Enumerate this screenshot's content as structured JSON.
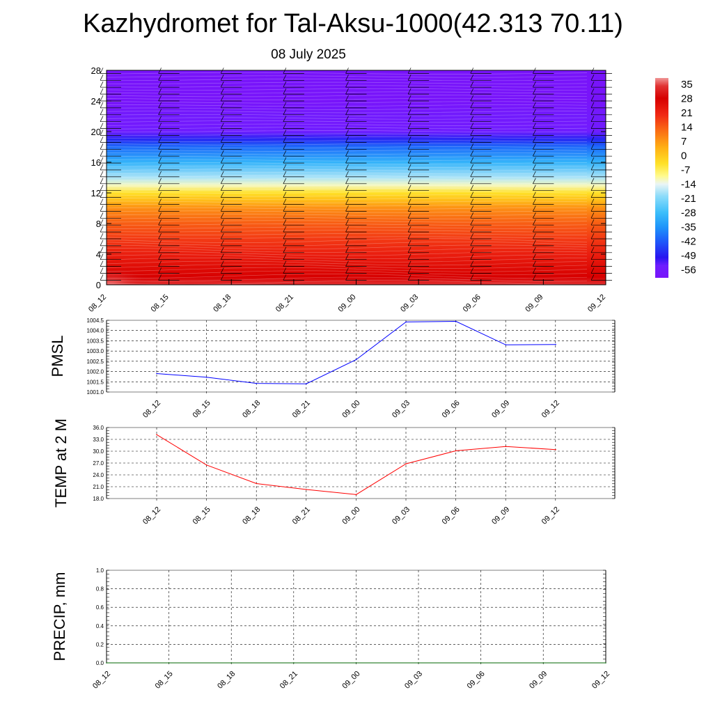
{
  "title": "Kazhydromet for Tal-Aksu-1000(42.313 70.11)",
  "subtitle": "08 July 2025",
  "colors": {
    "pmsl_line": "#0000ff",
    "temp_line": "#ff0000",
    "precip_line": "#006400"
  },
  "chart_data": [
    {
      "type": "heatmap",
      "name": "cross-section",
      "x_ticks": [
        "08_12",
        "08_15",
        "08_18",
        "08_21",
        "09_00",
        "09_03",
        "09_06",
        "09_09",
        "09_12"
      ],
      "y_ticks": [
        "0",
        "4",
        "8",
        "12",
        "16",
        "20",
        "24",
        "28"
      ],
      "ylim": [
        0,
        28
      ],
      "colorbar": {
        "ticks": [
          "35",
          "28",
          "21",
          "14",
          "7",
          "0",
          "-7",
          "-14",
          "-21",
          "-28",
          "-35",
          "-42",
          "-49",
          "-56"
        ],
        "range": [
          -60,
          38
        ]
      },
      "profile_levels": [
        0,
        1,
        2,
        4,
        6,
        8,
        10,
        11,
        12,
        13,
        14,
        16,
        18,
        19,
        20,
        21,
        22,
        23,
        24,
        26,
        28
      ],
      "profile_values": [
        34,
        28,
        26,
        22,
        18,
        14,
        8,
        2,
        -4,
        -12,
        -18,
        -30,
        -40,
        -48,
        -54,
        -57,
        -56,
        -58,
        -60,
        -60,
        -60
      ],
      "wind_barbs": "present"
    },
    {
      "type": "line",
      "name": "PMSL",
      "ylabel": "PMSL",
      "categories": [
        "08_12",
        "08_15",
        "08_18",
        "08_21",
        "09_00",
        "09_03",
        "09_06",
        "09_09",
        "09_12"
      ],
      "ylim": [
        1001.0,
        1004.5
      ],
      "y_ticks": [
        "1004.5",
        "1004.0",
        "1003.5",
        "1003.0",
        "1002.5",
        "1002.0",
        "1001.5",
        "1001.0"
      ],
      "y_tick_values": [
        1004.5,
        1004.0,
        1003.5,
        1003.0,
        1002.5,
        1002.0,
        1001.5,
        1001.0
      ],
      "series": [
        {
          "values": [
            1001.9,
            1001.72,
            1001.42,
            1001.4,
            1002.58,
            1004.42,
            1004.45,
            1003.3,
            1003.32
          ]
        }
      ]
    },
    {
      "type": "line",
      "name": "TEMP",
      "ylabel": "TEMP at 2 M",
      "categories": [
        "08_12",
        "08_15",
        "08_18",
        "08_21",
        "09_00",
        "09_03",
        "09_06",
        "09_09",
        "09_12"
      ],
      "ylim": [
        18.0,
        36.0
      ],
      "y_ticks": [
        "36.0",
        "33.0",
        "30.0",
        "27.0",
        "24.0",
        "21.0",
        "18.0"
      ],
      "y_tick_values": [
        36,
        33,
        30,
        27,
        24,
        21,
        18
      ],
      "series": [
        {
          "values": [
            34.2,
            26.5,
            21.8,
            20.3,
            19.0,
            26.8,
            30.1,
            31.2,
            30.4
          ]
        }
      ]
    },
    {
      "type": "line",
      "name": "PRECIP",
      "ylabel": "PRECIP, mm",
      "categories": [
        "08_12",
        "08_15",
        "08_18",
        "08_21",
        "09_00",
        "09_03",
        "09_06",
        "09_09",
        "09_12"
      ],
      "ylim": [
        0,
        1.0
      ],
      "y_ticks": [
        "1.0",
        "0.8",
        "0.6",
        "0.4",
        "0.2",
        "0.0"
      ],
      "y_tick_values": [
        1.0,
        0.8,
        0.6,
        0.4,
        0.2,
        0.0
      ],
      "series": [
        {
          "values": [
            0,
            0,
            0,
            0,
            0,
            0,
            0,
            0,
            0
          ]
        }
      ]
    }
  ]
}
